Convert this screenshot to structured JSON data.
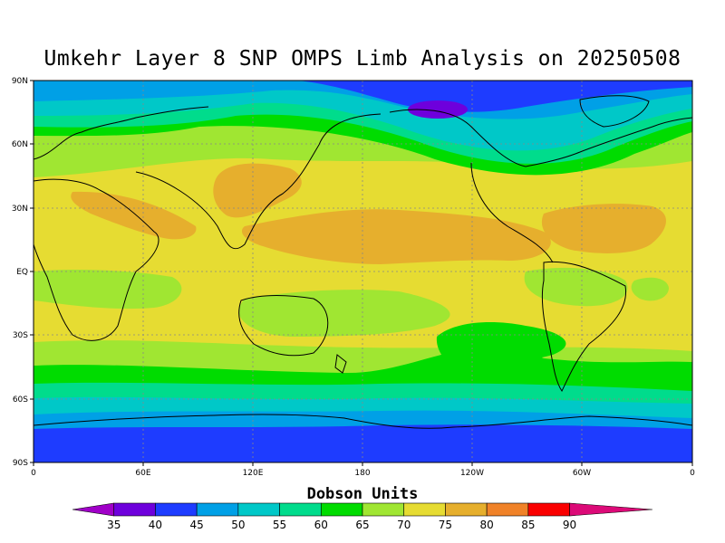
{
  "title": "Umkehr Layer 8 SNP OMPS Limb Analysis on 20250508",
  "colorbar_label": "Dobson Units",
  "lat_ticks": [
    "90N",
    "60N",
    "30N",
    "EQ",
    "30S",
    "60S",
    "90S"
  ],
  "lon_ticks": [
    "0",
    "60E",
    "120E",
    "180",
    "120W",
    "60W",
    "0"
  ],
  "colorbar": {
    "ticks": [
      "35",
      "40",
      "45",
      "50",
      "55",
      "60",
      "65",
      "70",
      "75",
      "80",
      "85",
      "90"
    ],
    "colors": [
      "#a000c8",
      "#6e00dc",
      "#1e3cff",
      "#00a0e6",
      "#00c8c8",
      "#00dc8c",
      "#00dc00",
      "#a0e632",
      "#e6dc32",
      "#e6af2d",
      "#f08228",
      "#fa0000",
      "#dc0a78"
    ]
  },
  "chart_data": {
    "type": "heatmap",
    "title": "Umkehr Layer 8 SNP OMPS Limb Analysis on 20250508",
    "units": "Dobson Units",
    "x_range": [
      0,
      360
    ],
    "y_range": [
      -90,
      90
    ],
    "levels": [
      35,
      40,
      45,
      50,
      55,
      60,
      65,
      70,
      75,
      80,
      85,
      90
    ],
    "grid": true
  }
}
